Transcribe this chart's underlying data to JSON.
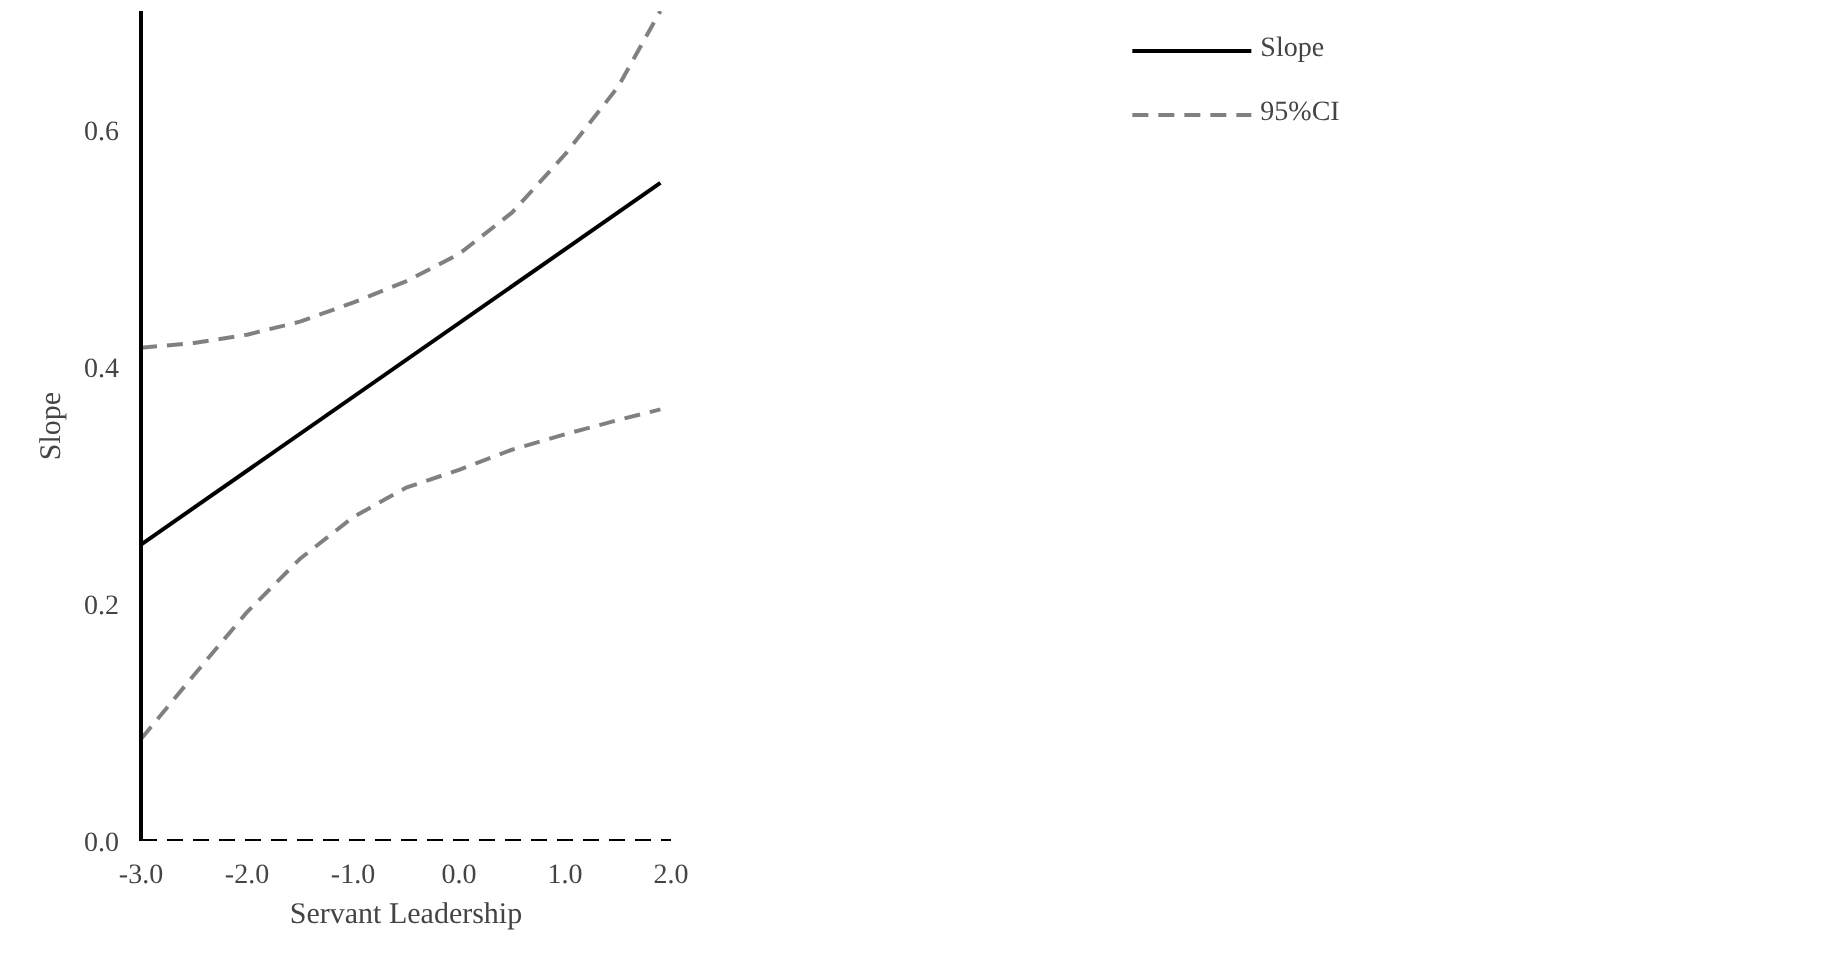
{
  "chart_data": {
    "type": "line",
    "xlabel": "Servant Leadership",
    "ylabel": "Slope",
    "xlim": [
      -3.0,
      2.0
    ],
    "xticks": [
      {
        "value": -3,
        "label": "-3.0"
      },
      {
        "value": -2,
        "label": "-2.0"
      },
      {
        "value": -1,
        "label": "-1.0"
      },
      {
        "value": 0,
        "label": "0.0"
      },
      {
        "value": 1,
        "label": "1.0"
      },
      {
        "value": 2,
        "label": "2.0"
      }
    ],
    "ylim": [
      0.0,
      0.7
    ],
    "yticks": [
      {
        "value": 0,
        "label": "0.0"
      },
      {
        "value": 0.2,
        "label": "0.2"
      },
      {
        "value": 0.4,
        "label": "0.4"
      },
      {
        "value": 0.6,
        "label": "0.6"
      }
    ],
    "series": [
      {
        "name": "Slope",
        "color": "#000000",
        "line_style": "solid",
        "x": [
          -3.0,
          1.9
        ],
        "values": [
          0.25,
          0.555
        ]
      },
      {
        "name": "95%CI",
        "color": "#808080",
        "line_style": "dashed",
        "x": [
          -3.0,
          -2.5,
          -2.0,
          -1.5,
          -1.0,
          -0.5,
          0.0,
          0.5,
          1.0,
          1.5,
          1.9
        ],
        "values": [
          0.416,
          0.42,
          0.427,
          0.438,
          0.454,
          0.472,
          0.495,
          0.53,
          0.579,
          0.636,
          0.7
        ]
      },
      {
        "color": "#808080",
        "line_style": "dashed",
        "x": [
          -3.0,
          -2.5,
          -2.0,
          -1.5,
          -1.0,
          -0.5,
          0.0,
          0.5,
          1.0,
          1.5,
          1.9
        ],
        "values": [
          0.086,
          0.14,
          0.193,
          0.238,
          0.273,
          0.298,
          0.313,
          0.33,
          0.343,
          0.355,
          0.364
        ]
      }
    ],
    "ref_lines": [
      {
        "axis": "y",
        "value": 0,
        "color": "#000000",
        "line_style": "dashed"
      }
    ],
    "grid": false,
    "legend": "top right",
    "marker": "none"
  }
}
